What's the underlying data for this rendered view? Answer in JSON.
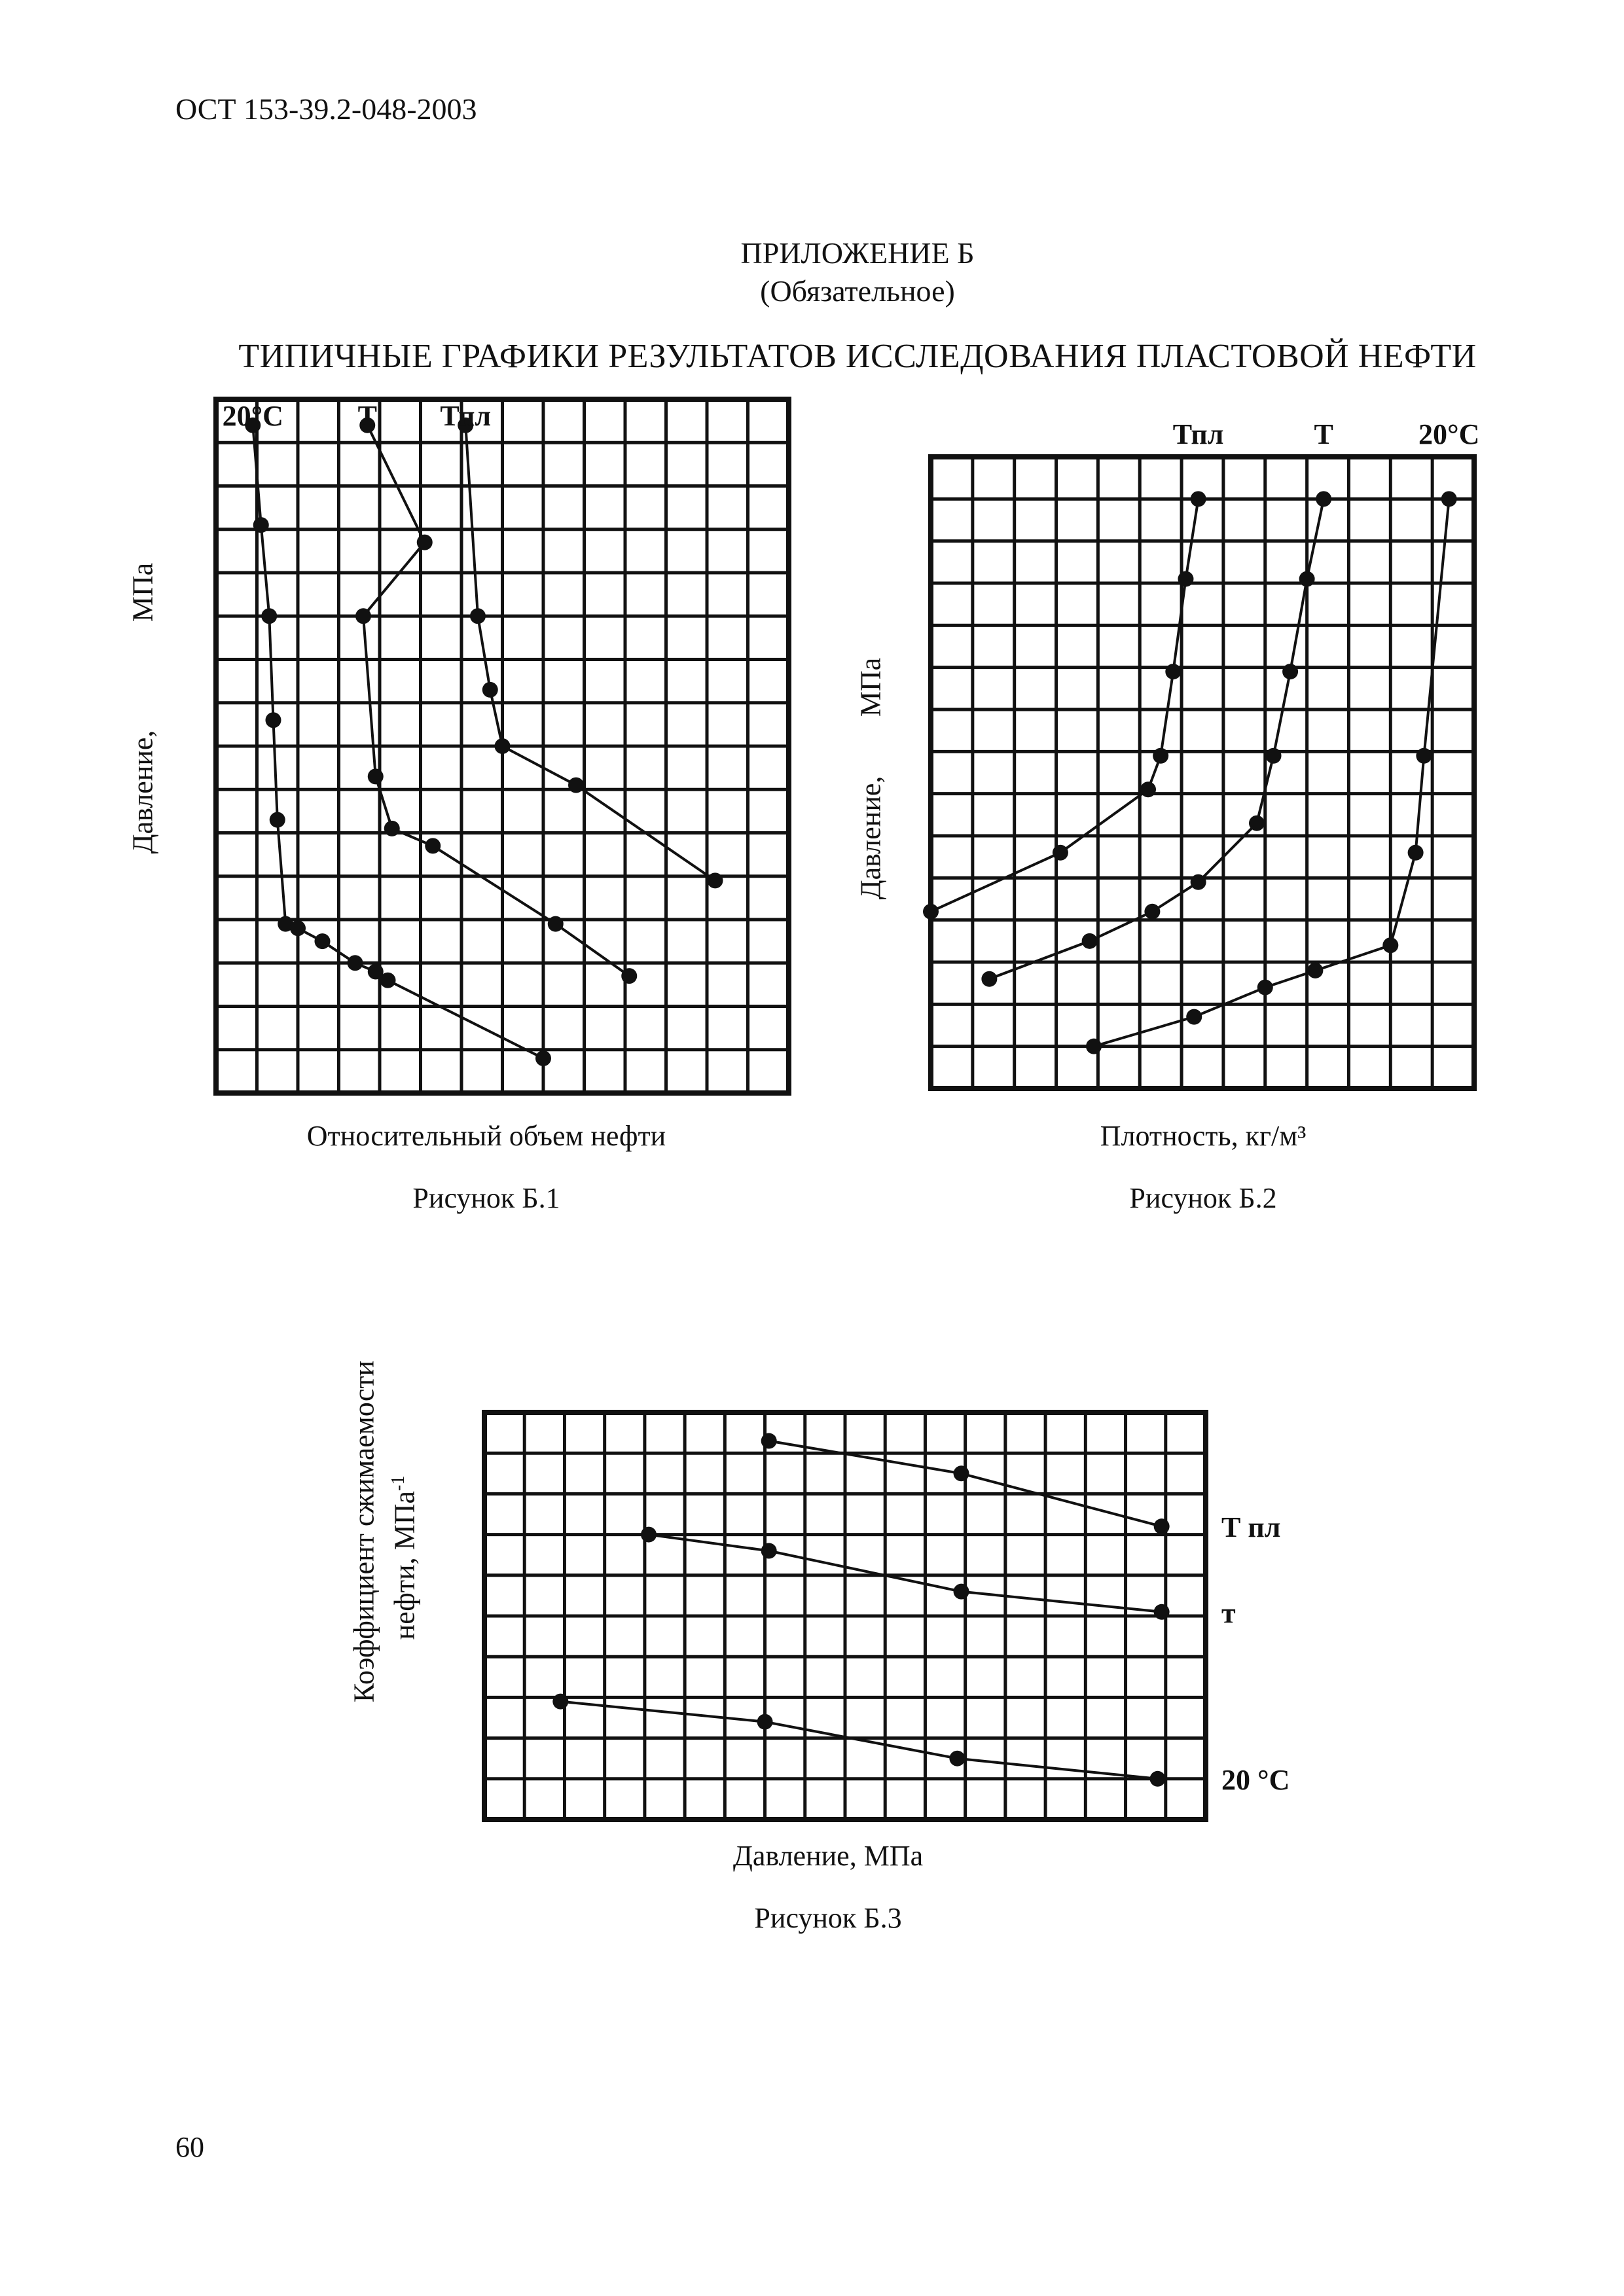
{
  "header": {
    "doc_code": "ОСТ 153-39.2-048-2003"
  },
  "appendix": {
    "title": "ПРИЛОЖЕНИЕ Б",
    "subtitle": "(Обязательное)"
  },
  "main_title": "ТИПИЧНЫЕ ГРАФИКИ РЕЗУЛЬТАТОВ ИССЛЕДОВАНИЯ ПЛАСТОВОЙ НЕФТИ",
  "page_number": "60",
  "colors": {
    "ink": "#111111",
    "paper": "#ffffff"
  },
  "chart_data": [
    {
      "id": "fig1",
      "type": "line",
      "title": "Рисунок Б.1",
      "xlabel": "Относительный объем нефти",
      "ylabel_left": "Давление,",
      "ylabel_right": "МПа",
      "xlim": [
        0,
        14
      ],
      "ylim": [
        0,
        16
      ],
      "grid": true,
      "legend": "top-left, labels above curves",
      "series": [
        {
          "name": "20°C",
          "label": "20°C",
          "label_x": 0.9,
          "points": [
            [
              0.9,
              15.4
            ],
            [
              1.1,
              13.1
            ],
            [
              1.3,
              11.0
            ],
            [
              1.4,
              8.6
            ],
            [
              1.5,
              6.3
            ],
            [
              1.7,
              3.9
            ],
            [
              2.0,
              3.8
            ],
            [
              2.6,
              3.5
            ],
            [
              3.4,
              3.0
            ],
            [
              3.9,
              2.8
            ],
            [
              4.2,
              2.6
            ],
            [
              8.0,
              0.8
            ]
          ]
        },
        {
          "name": "T",
          "label": "Т",
          "label_x": 3.7,
          "points": [
            [
              3.7,
              15.4
            ],
            [
              5.1,
              12.7
            ],
            [
              3.6,
              11.0
            ],
            [
              3.9,
              7.3
            ],
            [
              4.3,
              6.1
            ],
            [
              5.3,
              5.7
            ],
            [
              8.3,
              3.9
            ],
            [
              10.1,
              2.7
            ]
          ]
        },
        {
          "name": "Tпл",
          "label": "Тпл",
          "label_x": 6.1,
          "points": [
            [
              6.1,
              15.4
            ],
            [
              6.4,
              11.0
            ],
            [
              6.7,
              9.3
            ],
            [
              7.0,
              8.0
            ],
            [
              8.8,
              7.1
            ],
            [
              12.2,
              4.9
            ]
          ]
        }
      ]
    },
    {
      "id": "fig2",
      "type": "line",
      "title": "Рисунок Б.2",
      "xlabel": "Плотность, кг/м³",
      "ylabel_left": "Давление,",
      "ylabel_right": "МПа",
      "xlim": [
        0,
        13
      ],
      "ylim": [
        0,
        15
      ],
      "grid": true,
      "legend": "top-right, labels above plot",
      "series": [
        {
          "name": "Tпл",
          "label": "Тпл",
          "label_x": 6.4,
          "points": [
            [
              6.4,
              14.0
            ],
            [
              6.1,
              12.1
            ],
            [
              5.8,
              9.9
            ],
            [
              5.5,
              7.9
            ],
            [
              5.2,
              7.1
            ],
            [
              3.1,
              5.6
            ],
            [
              0.0,
              4.2
            ]
          ]
        },
        {
          "name": "T",
          "label": "Т",
          "label_x": 9.4,
          "points": [
            [
              9.4,
              14.0
            ],
            [
              9.0,
              12.1
            ],
            [
              8.6,
              9.9
            ],
            [
              8.2,
              7.9
            ],
            [
              7.8,
              6.3
            ],
            [
              6.4,
              4.9
            ],
            [
              5.3,
              4.2
            ],
            [
              3.8,
              3.5
            ],
            [
              1.4,
              2.6
            ]
          ]
        },
        {
          "name": "20°C",
          "label": "20°C",
          "label_x": 12.4,
          "points": [
            [
              12.4,
              14.0
            ],
            [
              11.8,
              7.9
            ],
            [
              11.6,
              5.6
            ],
            [
              11.0,
              3.4
            ],
            [
              9.2,
              2.8
            ],
            [
              8.0,
              2.4
            ],
            [
              6.3,
              1.7
            ],
            [
              3.9,
              1.0
            ]
          ]
        }
      ]
    },
    {
      "id": "fig3",
      "type": "line",
      "title": "Рисунок Б.3",
      "xlabel": "Давление, МПа",
      "ylabel_line1": "Коэффициент сжимаемости",
      "ylabel_line2": "нефти, МПа",
      "ylabel_sup": "-1",
      "xlim": [
        0,
        18
      ],
      "ylim": [
        0,
        10
      ],
      "grid": true,
      "legend": "right side, labels beside curve ends",
      "series": [
        {
          "name": "Tпл",
          "label": "Т пл",
          "label_y": 7.2,
          "points": [
            [
              7.1,
              9.3
            ],
            [
              11.9,
              8.5
            ],
            [
              16.9,
              7.2
            ]
          ]
        },
        {
          "name": "T",
          "label": "т",
          "label_y": 5.1,
          "points": [
            [
              4.1,
              7.0
            ],
            [
              7.1,
              6.6
            ],
            [
              11.9,
              5.6
            ],
            [
              16.9,
              5.1
            ]
          ]
        },
        {
          "name": "20°C",
          "label": "20 °C",
          "label_y": 1.0,
          "points": [
            [
              1.9,
              2.9
            ],
            [
              7.0,
              2.4
            ],
            [
              11.8,
              1.5
            ],
            [
              16.8,
              1.0
            ]
          ]
        }
      ]
    }
  ]
}
